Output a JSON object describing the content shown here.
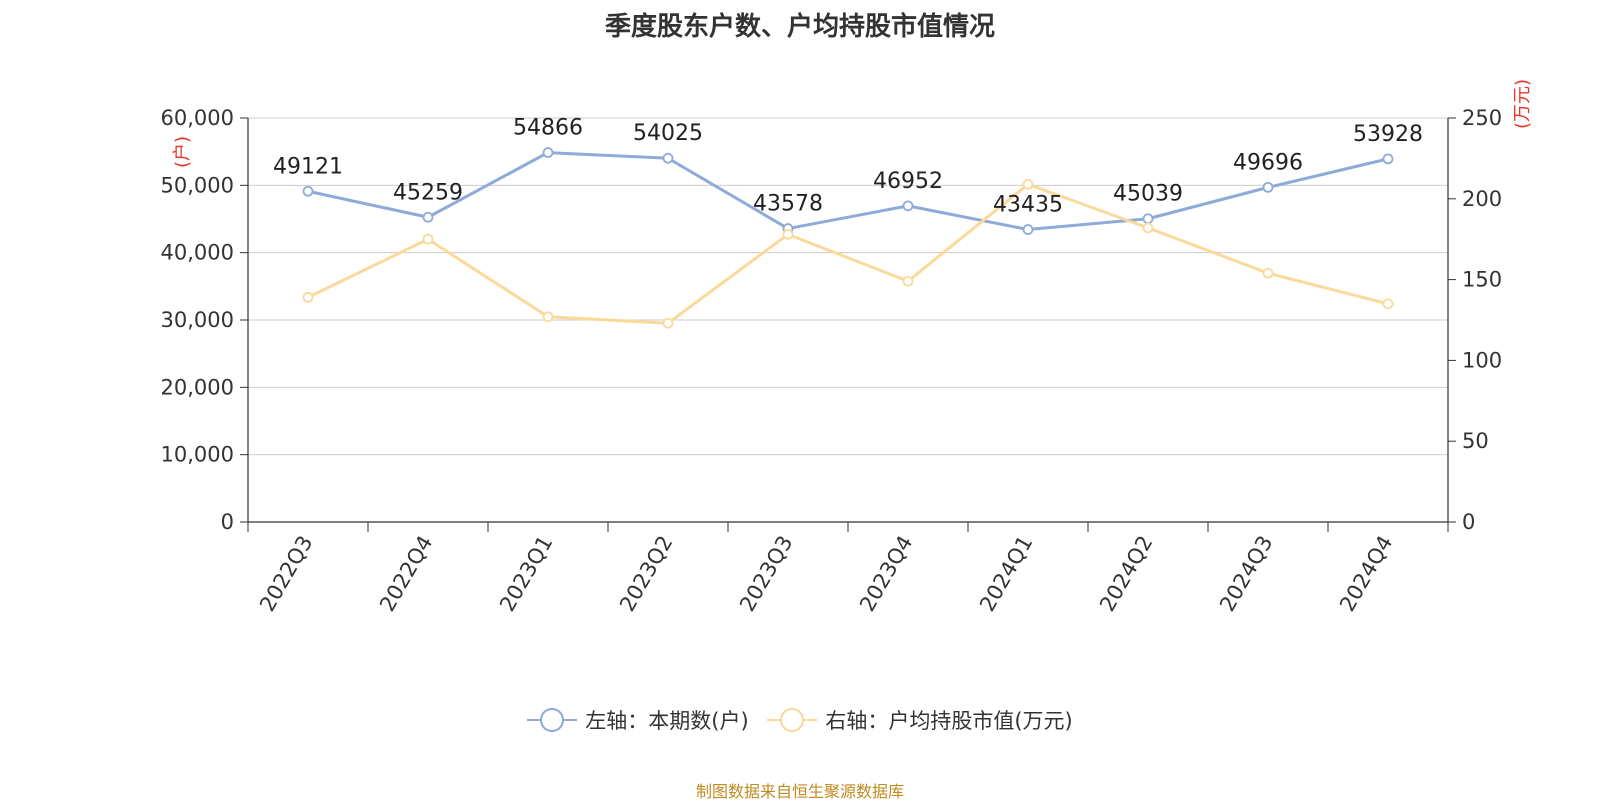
{
  "title": "季度股东户数、户均持股市值情况",
  "source_note": "制图数据来自恒生聚源数据库",
  "colors": {
    "left_series": "#8eaad8",
    "right_series": "#fad99a",
    "axis_unit": "#e8352b",
    "title": "#333333",
    "source": "#c08a1f",
    "grid": "#cccccc"
  },
  "legend": {
    "left_label": "左轴：本期数(户)",
    "right_label": "右轴：户均持股市值(万元)"
  },
  "chart_data": {
    "type": "line",
    "title": "季度股东户数、户均持股市值情况",
    "categories": [
      "2022Q3",
      "2022Q4",
      "2023Q1",
      "2023Q2",
      "2023Q3",
      "2023Q4",
      "2024Q1",
      "2024Q2",
      "2024Q3",
      "2024Q4"
    ],
    "left_axis": {
      "unit_label": "(户)",
      "ylim": [
        0,
        60000
      ],
      "ticks": [
        0,
        10000,
        20000,
        30000,
        40000,
        50000,
        60000
      ],
      "tick_labels": [
        "0",
        "10,000",
        "20,000",
        "30,000",
        "40,000",
        "50,000",
        "60,000"
      ]
    },
    "right_axis": {
      "unit_label": "(万元)",
      "ylim": [
        0,
        250
      ],
      "ticks": [
        0,
        50,
        100,
        150,
        200,
        250
      ],
      "tick_labels": [
        "0",
        "50",
        "100",
        "150",
        "200",
        "250"
      ]
    },
    "series": [
      {
        "name": "左轴：本期数(户)",
        "axis": "left",
        "values": [
          49121,
          45259,
          54866,
          54025,
          43578,
          46952,
          43435,
          45039,
          49696,
          53928
        ],
        "data_labels": [
          "49121",
          "45259",
          "54866",
          "54025",
          "43578",
          "46952",
          "43435",
          "45039",
          "49696",
          "53928"
        ]
      },
      {
        "name": "右轴：户均持股市值(万元)",
        "axis": "right",
        "values": [
          139,
          175,
          127,
          123,
          178,
          149,
          209,
          182,
          154,
          135
        ]
      }
    ],
    "grid": true,
    "legend_position": "bottom"
  }
}
